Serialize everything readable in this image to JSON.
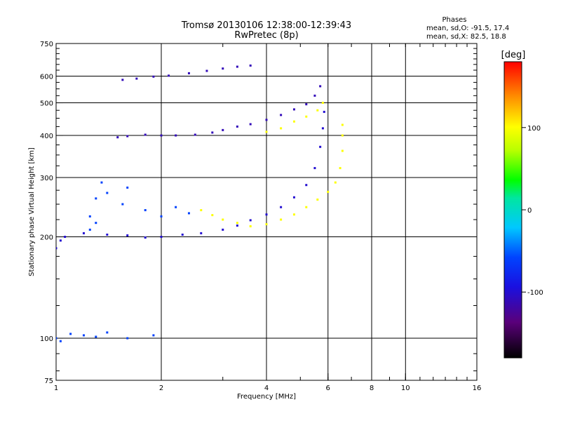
{
  "header": {
    "title": "Tromsø 20130106 12:38:00-12:39:43",
    "subtitle": "RwPretec (8p)"
  },
  "stats": {
    "title": "Phases",
    "o_line": "mean, sd,O: -91.5, 17.4",
    "x_line": "mean, sd,X:  82.5, 18.8"
  },
  "colorbar": {
    "unit": "[deg]",
    "ticks": [
      "100",
      "0",
      "-100"
    ],
    "tick_values": [
      100,
      0,
      -100
    ],
    "range": [
      -180,
      180
    ]
  },
  "chart_data": {
    "type": "scatter",
    "xlabel": "Frequency [MHz]",
    "ylabel": "Stationary phase Virtual Height [km]",
    "x_scale": "log",
    "y_scale": "log",
    "xlim": [
      1,
      16
    ],
    "ylim": [
      75,
      750
    ],
    "x_ticks": [
      1,
      2,
      4,
      6,
      8,
      10,
      16
    ],
    "x_tick_labels": [
      "1",
      "2",
      "4",
      "6",
      "8",
      "10",
      "16"
    ],
    "y_ticks": [
      75,
      100,
      200,
      300,
      400,
      500,
      600,
      750
    ],
    "y_tick_labels": [
      "75",
      "100",
      "200",
      "300",
      "400",
      "500",
      "600",
      "750"
    ],
    "grid_x": [
      2,
      4,
      6,
      8,
      10
    ],
    "grid_y": [
      100,
      200,
      300,
      400,
      500,
      600
    ],
    "series": [
      {
        "phase": -100,
        "points": [
          [
            1.0,
            185
          ],
          [
            1.03,
            195
          ],
          [
            1.06,
            200
          ],
          [
            1.2,
            205
          ],
          [
            1.4,
            203
          ],
          [
            1.6,
            202
          ],
          [
            1.8,
            199
          ],
          [
            2.0,
            200
          ],
          [
            2.3,
            203
          ],
          [
            2.6,
            205
          ],
          [
            3.0,
            210
          ],
          [
            3.3,
            216
          ],
          [
            3.6,
            224
          ],
          [
            4.0,
            233
          ],
          [
            4.4,
            245
          ],
          [
            4.8,
            262
          ],
          [
            5.2,
            285
          ],
          [
            5.5,
            320
          ],
          [
            5.7,
            370
          ],
          [
            5.8,
            420
          ],
          [
            5.85,
            470
          ]
        ]
      },
      {
        "phase": -110,
        "points": [
          [
            1.5,
            395
          ],
          [
            1.6,
            398
          ],
          [
            1.8,
            402
          ],
          [
            2.0,
            400
          ],
          [
            2.2,
            400
          ],
          [
            2.5,
            402
          ],
          [
            2.8,
            408
          ],
          [
            3.0,
            415
          ],
          [
            3.3,
            425
          ],
          [
            3.6,
            432
          ],
          [
            4.0,
            445
          ],
          [
            4.4,
            460
          ],
          [
            4.8,
            478
          ],
          [
            5.2,
            495
          ],
          [
            5.5,
            525
          ],
          [
            5.7,
            560
          ]
        ]
      },
      {
        "phase": -110,
        "points": [
          [
            1.55,
            585
          ],
          [
            1.7,
            590
          ],
          [
            1.9,
            598
          ],
          [
            2.1,
            602
          ],
          [
            2.4,
            612
          ],
          [
            2.7,
            622
          ],
          [
            3.0,
            632
          ],
          [
            3.3,
            640
          ],
          [
            3.6,
            645
          ]
        ]
      },
      {
        "phase": -60,
        "points": [
          [
            1.25,
            230
          ],
          [
            1.3,
            260
          ],
          [
            1.35,
            290
          ],
          [
            1.4,
            270
          ],
          [
            1.25,
            210
          ],
          [
            1.3,
            220
          ],
          [
            1.55,
            250
          ],
          [
            1.6,
            280
          ],
          [
            1.8,
            240
          ],
          [
            2.0,
            230
          ],
          [
            2.2,
            245
          ],
          [
            2.4,
            235
          ]
        ]
      },
      {
        "phase": -60,
        "points": [
          [
            1.0,
            100
          ],
          [
            1.03,
            98
          ],
          [
            1.1,
            103
          ],
          [
            1.2,
            102
          ],
          [
            1.3,
            101
          ],
          [
            1.4,
            104
          ],
          [
            1.6,
            100
          ],
          [
            1.9,
            102
          ]
        ]
      },
      {
        "phase": 100,
        "points": [
          [
            2.6,
            240
          ],
          [
            2.8,
            232
          ],
          [
            3.0,
            225
          ],
          [
            3.3,
            220
          ],
          [
            3.6,
            215
          ],
          [
            4.0,
            218
          ],
          [
            4.4,
            225
          ],
          [
            4.8,
            233
          ],
          [
            5.2,
            245
          ],
          [
            5.6,
            258
          ],
          [
            6.0,
            272
          ],
          [
            6.3,
            290
          ],
          [
            6.5,
            320
          ],
          [
            6.6,
            360
          ],
          [
            6.6,
            400
          ],
          [
            6.6,
            430
          ]
        ]
      },
      {
        "phase": 100,
        "points": [
          [
            4.0,
            410
          ],
          [
            4.4,
            420
          ],
          [
            4.8,
            440
          ],
          [
            5.2,
            455
          ],
          [
            5.6,
            475
          ],
          [
            5.8,
            500
          ]
        ]
      }
    ]
  }
}
